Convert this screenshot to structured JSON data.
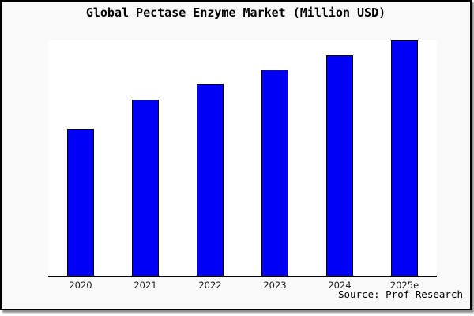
{
  "chart_data": {
    "type": "bar",
    "title": "Global Pectase Enzyme Market (Million USD)",
    "categories": [
      "2020",
      "2021",
      "2022",
      "2023",
      "2024",
      "2025e"
    ],
    "values": [
      62.5,
      74.9,
      81.4,
      87.6,
      93.6,
      100
    ],
    "value_note": "no y-axis tick labels shown in image; values are relative bar heights with tallest bar (2025e) = 100",
    "ylim": [
      0,
      100
    ],
    "xlabel": "",
    "ylabel": "",
    "grid": false,
    "legend": false,
    "bar_fill_color": "#0000f5",
    "bar_edge_color": "#000000",
    "plot_background_color": "#ffffff",
    "figure_background_color": "#f9f9f9",
    "frame_border_color": "#000000",
    "source": "Source: Prof Research"
  }
}
